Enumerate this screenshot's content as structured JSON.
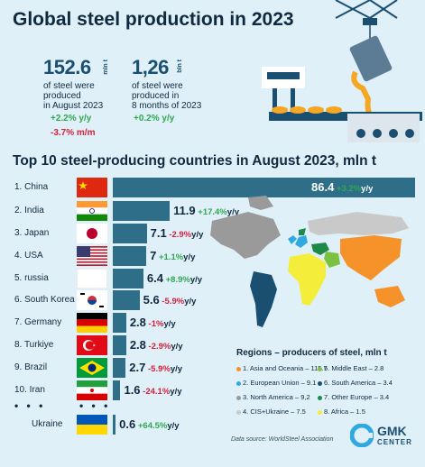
{
  "title": "Global steel production in 2023",
  "stats": {
    "stat1": {
      "value": "152.6",
      "unit": "mln t",
      "desc": [
        "of steel were",
        "produced",
        "in August 2023"
      ],
      "yy": "+2.2% y/y",
      "mm": "-3.7% m/m"
    },
    "stat2": {
      "value": "1,26",
      "unit": "bln t",
      "desc": [
        "of steel were",
        "produced in",
        "8 months of 2023"
      ],
      "yy": "+0.2% y/y"
    }
  },
  "top10_title": "Top 10 steel-producing countries in August 2023, mln t",
  "colors": {
    "bar": "#2e6e88",
    "positive": "#2fa84f",
    "negative": "#d4213d"
  },
  "chart_data": {
    "type": "bar",
    "orientation": "horizontal",
    "title": "Top 10 steel-producing countries in August 2023, mln t",
    "categories": [
      "1. China",
      "2. India",
      "3. Japan",
      "4. USA",
      "5. russia",
      "6. South Korea",
      "7. Germany",
      "8. Turkiye",
      "9. Brazil",
      "10. Iran",
      "Ukraine"
    ],
    "values": [
      86.4,
      11.9,
      7.1,
      7,
      6.4,
      5.6,
      2.8,
      2.8,
      2.7,
      1.6,
      0.6
    ],
    "labels": [
      "86.4",
      "11.9",
      "7.1",
      "7",
      "6.4",
      "5.6",
      "2.8",
      "2.8",
      "2.7",
      "1.6",
      "0.6"
    ],
    "changes": [
      "+3.2%",
      "+17.4%",
      "-2.9%",
      "+1.1%",
      "+8.9%",
      "-5.9%",
      "-1%",
      "-2.9%",
      "-5.9%",
      "-24.1%",
      "+64.5%"
    ],
    "change_suffix": "y/y",
    "xlim": [
      0,
      86.4
    ]
  },
  "ellipsis": "• • •",
  "regions": {
    "title": "Regions  – producers of steel, mln t",
    "items": [
      {
        "label": "1. Asia and Oceania – 115.7",
        "color": "#f5922a"
      },
      {
        "label": "5. Middle East – 2.8",
        "color": "#7dc142"
      },
      {
        "label": "2. European Union – 9.1",
        "color": "#2fa9e0"
      },
      {
        "label": "6. South America – 3.4",
        "color": "#1b4f72"
      },
      {
        "label": "3. North America – 9,2",
        "color": "#9a9a9a"
      },
      {
        "label": "7. Other Europe – 3.4",
        "color": "#1e8a4a"
      },
      {
        "label": "4. CIS+Ukraine – 7.5",
        "color": "#c9c9c9"
      },
      {
        "label": "8. Africa – 1.5",
        "color": "#f4ee3a"
      }
    ]
  },
  "source": "Data source: WorldSteel Association",
  "logo": {
    "name": "GMK",
    "sub": "CENTER"
  }
}
